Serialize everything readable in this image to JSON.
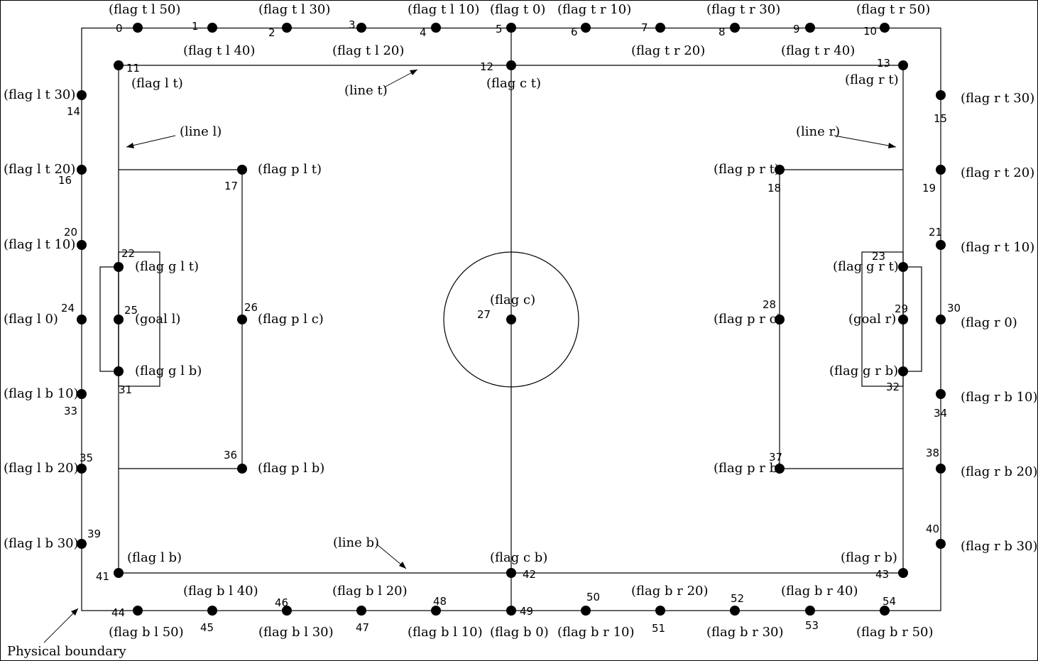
{
  "labels": {
    "line_t": "(line t)",
    "line_l": "(line l)",
    "line_r": "(line r)",
    "line_b": "(line b)",
    "physical_boundary": "Physical boundary"
  },
  "flags": [
    {
      "id": "0",
      "label": "(flag t l 50)"
    },
    {
      "id": "1",
      "label": "(flag t l 40)"
    },
    {
      "id": "2",
      "label": "(flag t l 30)"
    },
    {
      "id": "3",
      "label": "(flag t l 20)"
    },
    {
      "id": "4",
      "label": "(flag t l 10)"
    },
    {
      "id": "5",
      "label": "(flag t 0)"
    },
    {
      "id": "6",
      "label": "(flag t r 10)"
    },
    {
      "id": "7",
      "label": "(flag t r 20)"
    },
    {
      "id": "8",
      "label": "(flag t r 30)"
    },
    {
      "id": "9",
      "label": "(flag t r 40)"
    },
    {
      "id": "10",
      "label": "(flag t r 50)"
    },
    {
      "id": "11",
      "label": "(flag l t)"
    },
    {
      "id": "12",
      "label": "(flag c t)"
    },
    {
      "id": "13",
      "label": "(flag r t)"
    },
    {
      "id": "14",
      "label": "(flag l t 30)"
    },
    {
      "id": "15",
      "label": "(flag r t 30)"
    },
    {
      "id": "16",
      "label": "(flag l t 20)"
    },
    {
      "id": "17",
      "label": "(flag p l t)"
    },
    {
      "id": "18",
      "label": "(flag p r t)"
    },
    {
      "id": "19",
      "label": "(flag r t 20)"
    },
    {
      "id": "20",
      "label": "(flag l t 10)"
    },
    {
      "id": "21",
      "label": "(flag r t 10)"
    },
    {
      "id": "22",
      "label": "(flag g l t)"
    },
    {
      "id": "23",
      "label": "(flag g r t)"
    },
    {
      "id": "24",
      "label": "(flag l 0)"
    },
    {
      "id": "25",
      "label": "(goal l)"
    },
    {
      "id": "26",
      "label": "(flag p l c)"
    },
    {
      "id": "27",
      "label": "(flag c)"
    },
    {
      "id": "28",
      "label": "(flag p r c)"
    },
    {
      "id": "29",
      "label": "(goal r)"
    },
    {
      "id": "30",
      "label": "(flag r 0)"
    },
    {
      "id": "31",
      "label": "(flag g l b)"
    },
    {
      "id": "32",
      "label": "(flag g r b)"
    },
    {
      "id": "33",
      "label": "(flag l b 10)"
    },
    {
      "id": "34",
      "label": "(flag r b 10)"
    },
    {
      "id": "35",
      "label": "(flag l b 20)"
    },
    {
      "id": "36",
      "label": "(flag p l b)"
    },
    {
      "id": "37",
      "label": "(flag p r b)"
    },
    {
      "id": "38",
      "label": "(flag r b 20)"
    },
    {
      "id": "39",
      "label": "(flag l b 30)"
    },
    {
      "id": "40",
      "label": "(flag r b 30)"
    },
    {
      "id": "41",
      "label": "(flag l b)"
    },
    {
      "id": "42",
      "label": "(flag c b)"
    },
    {
      "id": "43",
      "label": "(flag r b)"
    },
    {
      "id": "44",
      "label": "(flag b l 50)"
    },
    {
      "id": "45",
      "label": "(flag b l 40)"
    },
    {
      "id": "46",
      "label": "(flag b l 30)"
    },
    {
      "id": "47",
      "label": "(flag b l 20)"
    },
    {
      "id": "48",
      "label": "(flag b l 10)"
    },
    {
      "id": "49",
      "label": "(flag b 0)"
    },
    {
      "id": "50",
      "label": "(flag b r 10)"
    },
    {
      "id": "51",
      "label": "(flag b r 20)"
    },
    {
      "id": "52",
      "label": "(flag b r 30)"
    },
    {
      "id": "53",
      "label": "(flag b r 40)"
    },
    {
      "id": "54",
      "label": "(flag b r 50)"
    }
  ]
}
